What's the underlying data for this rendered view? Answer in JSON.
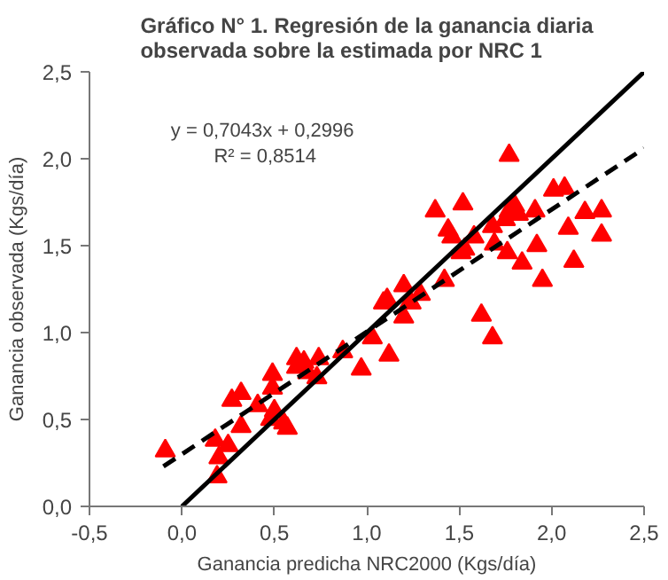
{
  "chart_data": {
    "type": "scatter",
    "title": "Gráfico N° 1. Regresión de la ganancia diaria\nobservada sobre la estimada por NRC 1",
    "xlabel": "Ganancia predicha NRC2000 (Kgs/día)",
    "ylabel": "Ganancia observada (Kgs/día)",
    "xlim": [
      -0.5,
      2.5
    ],
    "ylim": [
      0,
      2.5
    ],
    "xticks": [
      {
        "value": -0.5,
        "label": "-0,5"
      },
      {
        "value": 0,
        "label": "0,0"
      },
      {
        "value": 0.5,
        "label": "0,5"
      },
      {
        "value": 1,
        "label": "1,0"
      },
      {
        "value": 1.5,
        "label": "1,5"
      },
      {
        "value": 2,
        "label": "2,0"
      },
      {
        "value": 2.5,
        "label": "2,5"
      }
    ],
    "yticks": [
      {
        "value": 0,
        "label": "0,0"
      },
      {
        "value": 0.5,
        "label": "0,5"
      },
      {
        "value": 1,
        "label": "1,0"
      },
      {
        "value": 1.5,
        "label": "1,5"
      },
      {
        "value": 2,
        "label": "2,0"
      },
      {
        "value": 2.5,
        "label": "2,5"
      }
    ],
    "grid": false,
    "annotations": [
      "y = 0,7043x  + 0,2996\nR² = 0,8514"
    ],
    "series": [
      {
        "marker": "triangle",
        "color": "#ff0000",
        "x": [
          -0.09,
          0.18,
          0.2,
          0.19,
          0.25,
          0.27,
          0.32,
          0.32,
          0.41,
          0.49,
          0.49,
          0.5,
          0.48,
          0.55,
          0.57,
          0.62,
          0.62,
          0.66,
          0.68,
          0.73,
          0.74,
          0.87,
          0.97,
          1.03,
          1.12,
          1.09,
          1.2,
          1.24,
          1.77,
          1.37,
          1.52,
          1.44,
          1.46,
          1.53,
          1.58,
          1.68,
          1.69,
          1.76,
          1.84,
          1.92,
          1.95,
          1.77,
          1.82,
          1.8,
          1.91,
          2.01,
          2.07,
          2.09,
          2.18,
          2.27,
          2.27,
          2.12,
          1.75,
          1.62,
          1.68,
          1.2,
          1.11,
          1.23,
          1.29,
          1.42,
          1.51
        ],
        "values": [
          0.32,
          0.38,
          0.28,
          0.17,
          0.35,
          0.61,
          0.65,
          0.46,
          0.58,
          0.68,
          0.76,
          0.55,
          0.5,
          0.48,
          0.45,
          0.85,
          0.8,
          0.83,
          0.77,
          0.74,
          0.85,
          0.89,
          0.79,
          0.97,
          0.87,
          1.17,
          1.09,
          1.17,
          2.02,
          1.7,
          1.74,
          1.59,
          1.55,
          1.48,
          1.55,
          1.61,
          1.51,
          1.46,
          1.4,
          1.5,
          1.3,
          1.7,
          1.68,
          1.73,
          1.7,
          1.82,
          1.83,
          1.6,
          1.69,
          1.7,
          1.56,
          1.41,
          1.65,
          1.1,
          0.97,
          1.27,
          1.19,
          1.17,
          1.22,
          1.3,
          1.46
        ]
      },
      {
        "type": "line",
        "line_style": "solid",
        "color": "#000000",
        "x": [
          0,
          2.5
        ],
        "values": [
          0,
          2.5
        ]
      },
      {
        "type": "line",
        "line_style": "dashed",
        "color": "#000000",
        "x": [
          -0.1,
          2.5
        ],
        "values": [
          0.23,
          2.06
        ]
      }
    ]
  }
}
